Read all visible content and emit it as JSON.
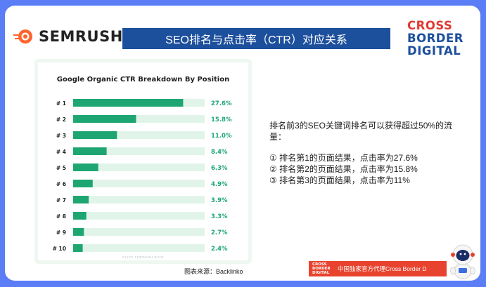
{
  "brand": {
    "name": "SEMRUSH"
  },
  "title": "SEO排名与点击率（CTR）对应关系",
  "partner_logo": {
    "lines": [
      "CROSS",
      "BORDER",
      "DIGITAL"
    ]
  },
  "chart_data": {
    "type": "bar",
    "orientation": "horizontal",
    "title": "Google Organic CTR Breakdown By Position",
    "xlabel": "CLICK THROUGH RATE",
    "categories": [
      "# 1",
      "# 2",
      "# 3",
      "# 4",
      "# 5",
      "# 6",
      "# 7",
      "# 8",
      "# 9",
      "# 10"
    ],
    "values": [
      27.6,
      15.8,
      11.0,
      8.4,
      6.3,
      4.9,
      3.9,
      3.3,
      2.7,
      2.4
    ],
    "value_labels": [
      "27.6%",
      "15.8%",
      "11.0%",
      "8.4%",
      "6.3%",
      "4.9%",
      "3.9%",
      "3.3%",
      "2.7%",
      "2.4%"
    ],
    "xlim": [
      0,
      33
    ],
    "colors": {
      "bar": "#1ea672",
      "track": "#e1f4ea",
      "label": "#1ea672"
    }
  },
  "caption": "图表来源：Backlinko",
  "description": {
    "intro": "排名前3的SEO关键词排名可以获得超过50%的流量：",
    "items": [
      "①  排名第1的页面结果，点击率为27.6%",
      "②  排名第2的页面结果，点击率为15.8%",
      "③  排名第3的页面结果，点击率为11%"
    ]
  },
  "footer": {
    "logo_lines": [
      "CROSS",
      "BORDER",
      "DIGITAL"
    ],
    "text": "中国独家官方代理Cross Border D"
  },
  "colors": {
    "frame": "#5b7df5",
    "title_bar": "#1c4f9c",
    "footer": "#e8432e",
    "accent_red": "#e23a33"
  }
}
